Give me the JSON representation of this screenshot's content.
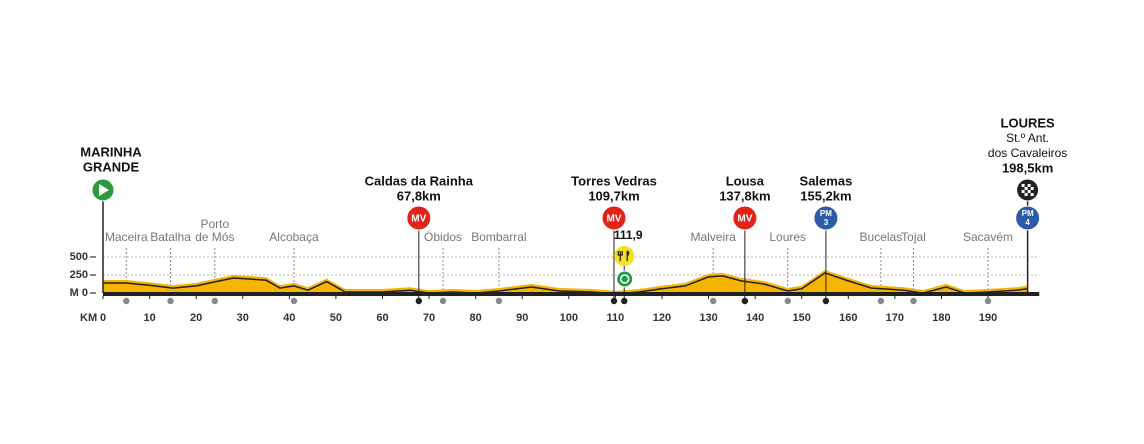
{
  "chart_data": {
    "type": "area",
    "x": [
      0,
      5,
      10,
      15,
      20,
      25,
      28,
      35,
      38,
      41,
      44,
      48,
      52,
      60,
      66,
      70,
      75,
      80,
      85,
      92,
      98,
      105,
      110,
      115,
      120,
      125,
      130,
      133,
      137,
      142,
      147,
      150,
      155,
      160,
      165,
      172,
      176,
      181,
      185,
      190,
      196,
      198.5
    ],
    "values": [
      180,
      180,
      150,
      110,
      140,
      210,
      250,
      220,
      110,
      140,
      80,
      200,
      55,
      55,
      80,
      40,
      55,
      40,
      70,
      125,
      70,
      55,
      30,
      55,
      100,
      140,
      265,
      280,
      210,
      165,
      70,
      100,
      320,
      210,
      110,
      80,
      40,
      125,
      40,
      55,
      80,
      100
    ],
    "color": "#f5b400",
    "line_color": "#222222",
    "xlim": [
      0,
      201
    ],
    "ylim": [
      0,
      500
    ],
    "xticks": [
      0,
      10,
      20,
      30,
      40,
      50,
      60,
      70,
      80,
      90,
      100,
      110,
      120,
      130,
      140,
      150,
      160,
      170,
      180,
      190
    ],
    "yticks": [
      {
        "value": 0,
        "label": "M 0"
      },
      250,
      500
    ],
    "xlabel": "KM",
    "grid": true,
    "climb_colors": {
      "MV": "#e2231a",
      "PM": "#2b5ba8"
    },
    "start": {
      "lines": [
        "MARINHA",
        "GRANDE"
      ],
      "km": 0
    },
    "finish": {
      "lines": [
        "LOURES"
      ],
      "sublines": [
        "St.º Ant.",
        "dos Cavaleiros"
      ],
      "km": 198.5,
      "km_label": "198,5km",
      "badge": [
        "PM",
        "4"
      ]
    },
    "climbs": [
      {
        "name": "Caldas da Rainha",
        "km": 67.8,
        "km_label": "67,8km",
        "badge": [
          "MV"
        ]
      },
      {
        "name": "Torres Vedras",
        "km": 109.7,
        "km_label": "109,7km",
        "badge": [
          "MV"
        ]
      },
      {
        "name": "Lousa",
        "km": 137.8,
        "km_label": "137,8km",
        "badge": [
          "MV"
        ]
      },
      {
        "name": "Salemas",
        "km": 155.2,
        "km_label": "155,2km",
        "badge": [
          "PM",
          "3"
        ]
      }
    ],
    "places": [
      {
        "lines": [
          "Maceira"
        ],
        "km": 5
      },
      {
        "lines": [
          "Batalha"
        ],
        "km": 14.5
      },
      {
        "lines": [
          "Porto",
          "de Mós"
        ],
        "km": 24
      },
      {
        "lines": [
          "Alcobaça"
        ],
        "km": 41
      },
      {
        "lines": [
          "Óbidos"
        ],
        "km": 73
      },
      {
        "lines": [
          "Bombarral"
        ],
        "km": 85
      },
      {
        "lines": [
          "Malveira"
        ],
        "km": 131
      },
      {
        "lines": [
          "Loures"
        ],
        "km": 147
      },
      {
        "lines": [
          "Bucelas"
        ],
        "km": 167
      },
      {
        "lines": [
          "Tojal"
        ],
        "km": 174
      },
      {
        "lines": [
          "Sacavém"
        ],
        "km": 190
      }
    ],
    "feed": {
      "km": 111.9,
      "label": "111,9"
    },
    "sprint_km": 112
  }
}
